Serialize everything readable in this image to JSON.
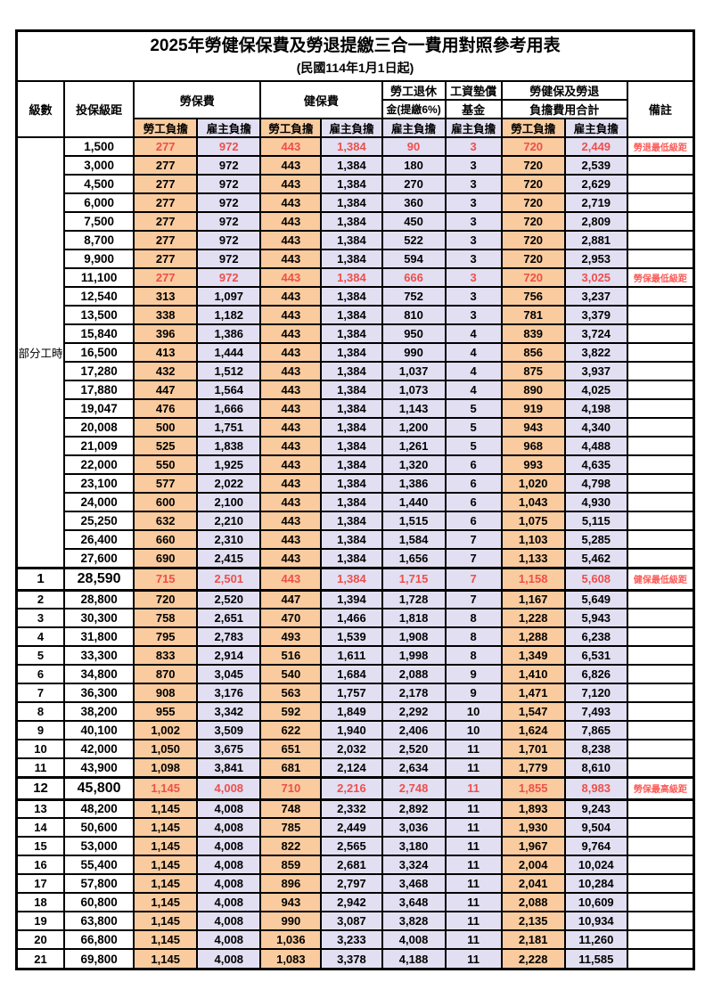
{
  "title": "2025年勞健保保費及勞退提繳三合一費用對照參考用表",
  "subtitle": "(民國114年1月1日起)",
  "colors": {
    "employee_bg": "#f9cb9e",
    "employer_bg": "#e2dff2",
    "highlight_red": "#ee4f4b",
    "note_red": "#fb5b57"
  },
  "header": {
    "level": "級數",
    "bracket": "投保級距",
    "labor_insurance": "勞保費",
    "health_insurance": "健保費",
    "pension_line1": "勞工退休",
    "pension_line2": "金(提繳6%)",
    "wage_fund_line1": "工資墊償",
    "wage_fund_line2": "基金",
    "total_line1": "勞健保及勞退",
    "total_line2": "負擔費用合計",
    "note": "備註",
    "employee_share": "勞工負擔",
    "employer_share": "雇主負擔"
  },
  "part_time_label": "部分工時",
  "rows": [
    {
      "level": "",
      "bracket": "1,500",
      "v": [
        "277",
        "972",
        "443",
        "1,384",
        "90",
        "3",
        "720",
        "2,449"
      ],
      "note": "勞退最低級距",
      "red": true,
      "emph": false
    },
    {
      "level": "",
      "bracket": "3,000",
      "v": [
        "277",
        "972",
        "443",
        "1,384",
        "180",
        "3",
        "720",
        "2,539"
      ],
      "note": "",
      "red": false,
      "emph": false
    },
    {
      "level": "",
      "bracket": "4,500",
      "v": [
        "277",
        "972",
        "443",
        "1,384",
        "270",
        "3",
        "720",
        "2,629"
      ],
      "note": "",
      "red": false,
      "emph": false
    },
    {
      "level": "",
      "bracket": "6,000",
      "v": [
        "277",
        "972",
        "443",
        "1,384",
        "360",
        "3",
        "720",
        "2,719"
      ],
      "note": "",
      "red": false,
      "emph": false
    },
    {
      "level": "",
      "bracket": "7,500",
      "v": [
        "277",
        "972",
        "443",
        "1,384",
        "450",
        "3",
        "720",
        "2,809"
      ],
      "note": "",
      "red": false,
      "emph": false
    },
    {
      "level": "",
      "bracket": "8,700",
      "v": [
        "277",
        "972",
        "443",
        "1,384",
        "522",
        "3",
        "720",
        "2,881"
      ],
      "note": "",
      "red": false,
      "emph": false
    },
    {
      "level": "",
      "bracket": "9,900",
      "v": [
        "277",
        "972",
        "443",
        "1,384",
        "594",
        "3",
        "720",
        "2,953"
      ],
      "note": "",
      "red": false,
      "emph": false
    },
    {
      "level": "",
      "bracket": "11,100",
      "v": [
        "277",
        "972",
        "443",
        "1,384",
        "666",
        "3",
        "720",
        "3,025"
      ],
      "note": "勞保最低級距",
      "red": true,
      "emph": false
    },
    {
      "level": "",
      "bracket": "12,540",
      "v": [
        "313",
        "1,097",
        "443",
        "1,384",
        "752",
        "3",
        "756",
        "3,237"
      ],
      "note": "",
      "red": false,
      "emph": false
    },
    {
      "level": "",
      "bracket": "13,500",
      "v": [
        "338",
        "1,182",
        "443",
        "1,384",
        "810",
        "3",
        "781",
        "3,379"
      ],
      "note": "",
      "red": false,
      "emph": false
    },
    {
      "level": "",
      "bracket": "15,840",
      "v": [
        "396",
        "1,386",
        "443",
        "1,384",
        "950",
        "4",
        "839",
        "3,724"
      ],
      "note": "",
      "red": false,
      "emph": false
    },
    {
      "level": "",
      "bracket": "16,500",
      "v": [
        "413",
        "1,444",
        "443",
        "1,384",
        "990",
        "4",
        "856",
        "3,822"
      ],
      "note": "",
      "red": false,
      "emph": false
    },
    {
      "level": "",
      "bracket": "17,280",
      "v": [
        "432",
        "1,512",
        "443",
        "1,384",
        "1,037",
        "4",
        "875",
        "3,937"
      ],
      "note": "",
      "red": false,
      "emph": false
    },
    {
      "level": "",
      "bracket": "17,880",
      "v": [
        "447",
        "1,564",
        "443",
        "1,384",
        "1,073",
        "4",
        "890",
        "4,025"
      ],
      "note": "",
      "red": false,
      "emph": false
    },
    {
      "level": "",
      "bracket": "19,047",
      "v": [
        "476",
        "1,666",
        "443",
        "1,384",
        "1,143",
        "5",
        "919",
        "4,198"
      ],
      "note": "",
      "red": false,
      "emph": false
    },
    {
      "level": "",
      "bracket": "20,008",
      "v": [
        "500",
        "1,751",
        "443",
        "1,384",
        "1,200",
        "5",
        "943",
        "4,340"
      ],
      "note": "",
      "red": false,
      "emph": false
    },
    {
      "level": "",
      "bracket": "21,009",
      "v": [
        "525",
        "1,838",
        "443",
        "1,384",
        "1,261",
        "5",
        "968",
        "4,488"
      ],
      "note": "",
      "red": false,
      "emph": false
    },
    {
      "level": "",
      "bracket": "22,000",
      "v": [
        "550",
        "1,925",
        "443",
        "1,384",
        "1,320",
        "6",
        "993",
        "4,635"
      ],
      "note": "",
      "red": false,
      "emph": false
    },
    {
      "level": "",
      "bracket": "23,100",
      "v": [
        "577",
        "2,022",
        "443",
        "1,384",
        "1,386",
        "6",
        "1,020",
        "4,798"
      ],
      "note": "",
      "red": false,
      "emph": false
    },
    {
      "level": "",
      "bracket": "24,000",
      "v": [
        "600",
        "2,100",
        "443",
        "1,384",
        "1,440",
        "6",
        "1,043",
        "4,930"
      ],
      "note": "",
      "red": false,
      "emph": false
    },
    {
      "level": "",
      "bracket": "25,250",
      "v": [
        "632",
        "2,210",
        "443",
        "1,384",
        "1,515",
        "6",
        "1,075",
        "5,115"
      ],
      "note": "",
      "red": false,
      "emph": false
    },
    {
      "level": "",
      "bracket": "26,400",
      "v": [
        "660",
        "2,310",
        "443",
        "1,384",
        "1,584",
        "7",
        "1,103",
        "5,285"
      ],
      "note": "",
      "red": false,
      "emph": false
    },
    {
      "level": "",
      "bracket": "27,600",
      "v": [
        "690",
        "2,415",
        "443",
        "1,384",
        "1,656",
        "7",
        "1,133",
        "5,462"
      ],
      "note": "",
      "red": false,
      "emph": false
    },
    {
      "level": "1",
      "bracket": "28,590",
      "v": [
        "715",
        "2,501",
        "443",
        "1,384",
        "1,715",
        "7",
        "1,158",
        "5,608"
      ],
      "note": "健保最低級距",
      "red": true,
      "emph": true
    },
    {
      "level": "2",
      "bracket": "28,800",
      "v": [
        "720",
        "2,520",
        "447",
        "1,394",
        "1,728",
        "7",
        "1,167",
        "5,649"
      ],
      "note": "",
      "red": false,
      "emph": false
    },
    {
      "level": "3",
      "bracket": "30,300",
      "v": [
        "758",
        "2,651",
        "470",
        "1,466",
        "1,818",
        "8",
        "1,228",
        "5,943"
      ],
      "note": "",
      "red": false,
      "emph": false
    },
    {
      "level": "4",
      "bracket": "31,800",
      "v": [
        "795",
        "2,783",
        "493",
        "1,539",
        "1,908",
        "8",
        "1,288",
        "6,238"
      ],
      "note": "",
      "red": false,
      "emph": false
    },
    {
      "level": "5",
      "bracket": "33,300",
      "v": [
        "833",
        "2,914",
        "516",
        "1,611",
        "1,998",
        "8",
        "1,349",
        "6,531"
      ],
      "note": "",
      "red": false,
      "emph": false
    },
    {
      "level": "6",
      "bracket": "34,800",
      "v": [
        "870",
        "3,045",
        "540",
        "1,684",
        "2,088",
        "9",
        "1,410",
        "6,826"
      ],
      "note": "",
      "red": false,
      "emph": false
    },
    {
      "level": "7",
      "bracket": "36,300",
      "v": [
        "908",
        "3,176",
        "563",
        "1,757",
        "2,178",
        "9",
        "1,471",
        "7,120"
      ],
      "note": "",
      "red": false,
      "emph": false
    },
    {
      "level": "8",
      "bracket": "38,200",
      "v": [
        "955",
        "3,342",
        "592",
        "1,849",
        "2,292",
        "10",
        "1,547",
        "7,493"
      ],
      "note": "",
      "red": false,
      "emph": false
    },
    {
      "level": "9",
      "bracket": "40,100",
      "v": [
        "1,002",
        "3,509",
        "622",
        "1,940",
        "2,406",
        "10",
        "1,624",
        "7,865"
      ],
      "note": "",
      "red": false,
      "emph": false
    },
    {
      "level": "10",
      "bracket": "42,000",
      "v": [
        "1,050",
        "3,675",
        "651",
        "2,032",
        "2,520",
        "11",
        "1,701",
        "8,238"
      ],
      "note": "",
      "red": false,
      "emph": false
    },
    {
      "level": "11",
      "bracket": "43,900",
      "v": [
        "1,098",
        "3,841",
        "681",
        "2,124",
        "2,634",
        "11",
        "1,779",
        "8,610"
      ],
      "note": "",
      "red": false,
      "emph": false
    },
    {
      "level": "12",
      "bracket": "45,800",
      "v": [
        "1,145",
        "4,008",
        "710",
        "2,216",
        "2,748",
        "11",
        "1,855",
        "8,983"
      ],
      "note": "勞保最高級距",
      "red": true,
      "emph": true
    },
    {
      "level": "13",
      "bracket": "48,200",
      "v": [
        "1,145",
        "4,008",
        "748",
        "2,332",
        "2,892",
        "11",
        "1,893",
        "9,243"
      ],
      "note": "",
      "red": false,
      "emph": false
    },
    {
      "level": "14",
      "bracket": "50,600",
      "v": [
        "1,145",
        "4,008",
        "785",
        "2,449",
        "3,036",
        "11",
        "1,930",
        "9,504"
      ],
      "note": "",
      "red": false,
      "emph": false
    },
    {
      "level": "15",
      "bracket": "53,000",
      "v": [
        "1,145",
        "4,008",
        "822",
        "2,565",
        "3,180",
        "11",
        "1,967",
        "9,764"
      ],
      "note": "",
      "red": false,
      "emph": false
    },
    {
      "level": "16",
      "bracket": "55,400",
      "v": [
        "1,145",
        "4,008",
        "859",
        "2,681",
        "3,324",
        "11",
        "2,004",
        "10,024"
      ],
      "note": "",
      "red": false,
      "emph": false
    },
    {
      "level": "17",
      "bracket": "57,800",
      "v": [
        "1,145",
        "4,008",
        "896",
        "2,797",
        "3,468",
        "11",
        "2,041",
        "10,284"
      ],
      "note": "",
      "red": false,
      "emph": false
    },
    {
      "level": "18",
      "bracket": "60,800",
      "v": [
        "1,145",
        "4,008",
        "943",
        "2,942",
        "3,648",
        "11",
        "2,088",
        "10,609"
      ],
      "note": "",
      "red": false,
      "emph": false
    },
    {
      "level": "19",
      "bracket": "63,800",
      "v": [
        "1,145",
        "4,008",
        "990",
        "3,087",
        "3,828",
        "11",
        "2,135",
        "10,934"
      ],
      "note": "",
      "red": false,
      "emph": false
    },
    {
      "level": "20",
      "bracket": "66,800",
      "v": [
        "1,145",
        "4,008",
        "1,036",
        "3,233",
        "4,008",
        "11",
        "2,181",
        "11,260"
      ],
      "note": "",
      "red": false,
      "emph": false
    },
    {
      "level": "21",
      "bracket": "69,800",
      "v": [
        "1,145",
        "4,008",
        "1,083",
        "3,378",
        "4,188",
        "11",
        "2,228",
        "11,585"
      ],
      "note": "",
      "red": false,
      "emph": false
    }
  ],
  "column_share_types": [
    "emp",
    "er",
    "emp",
    "er",
    "er",
    "er",
    "emp",
    "er"
  ]
}
